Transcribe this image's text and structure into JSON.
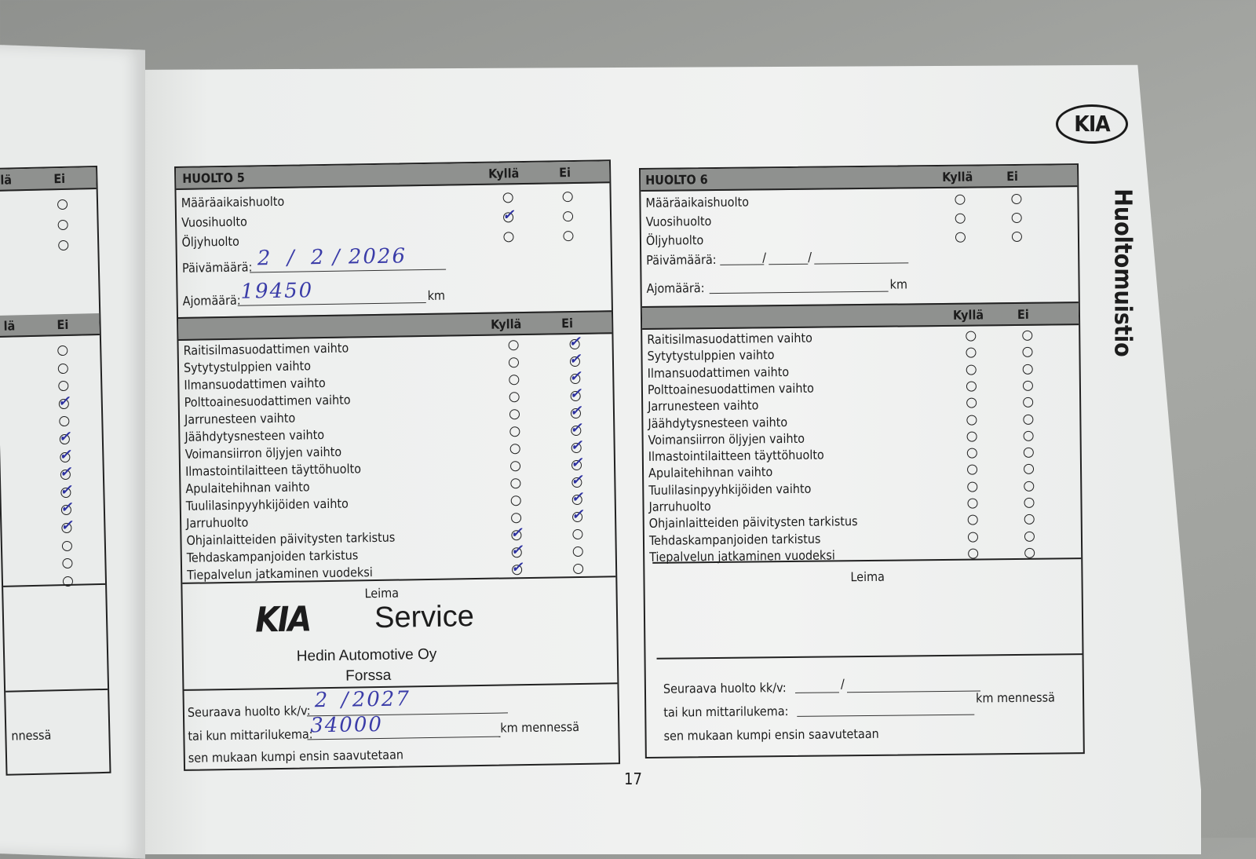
{
  "brand": {
    "logo_text": "KIA",
    "vertical_title": "Huoltomuistio",
    "page_number": "17",
    "ink_color": "#2b2fa0"
  },
  "columns": {
    "yes": "Kyllä",
    "no": "Ei"
  },
  "top_items": [
    "Määräaikaishuolto",
    "Vuosihuolto",
    "Öljyhuolto"
  ],
  "labels": {
    "date": "Päivämäärä:",
    "mileage": "Ajomäärä:",
    "km": "km",
    "stamp": "Leima",
    "next_service": "Seuraava huolto kk/v:",
    "or_odometer": "tai kun mittarilukema:",
    "km_by": "km mennessä",
    "whichever": "sen mukaan kumpi ensin saavutetaan"
  },
  "task_items": [
    "Raitisilmasuodattimen vaihto",
    "Sytytystulppien vaihto",
    "Ilmansuodattimen vaihto",
    "Polttoainesuodattimen vaihto",
    "Jarrunesteen vaihto",
    "Jäähdytysnesteen vaihto",
    "Voimansiirron öljyjen vaihto",
    "Ilmastointilaitteen täyttöhuolto",
    "Apulaitehihnan vaihto",
    "Tuulilasinpyyhkijöiden vaihto",
    "Jarruhuolto",
    "Ohjainlaitteiden päivitysten tarkistus",
    "Tehdaskampanjoiden tarkistus",
    "Tiepalvelun jatkaminen vuodeksi"
  ],
  "huolto5": {
    "title": "HUOLTO 5",
    "top_checks": [
      "",
      "yes",
      ""
    ],
    "date": {
      "day": "2",
      "month": "2",
      "year": "2026"
    },
    "mileage": "19450",
    "task_checks": [
      "no",
      "no",
      "no",
      "no",
      "no",
      "no",
      "no",
      "no",
      "no",
      "no",
      "no",
      "yes",
      "yes",
      "yes"
    ],
    "stamp": {
      "logo": "KIA",
      "service": "Service",
      "company": "Hedin Automotive Oy",
      "city": "Forssa"
    },
    "next_service": {
      "month": "2",
      "year": "2027",
      "odometer": "34000"
    }
  },
  "huolto6": {
    "title": "HUOLTO 6",
    "top_checks": [
      "",
      "",
      ""
    ],
    "task_checks": [
      "",
      "",
      "",
      "",
      "",
      "",
      "",
      "",
      "",
      "",
      "",
      "",
      "",
      ""
    ]
  },
  "left_page": {
    "col_yes_partial": "lä",
    "col_no": "Ei",
    "top_checks": [
      "",
      "",
      ""
    ],
    "task_checks": [
      "",
      "",
      "",
      "no",
      "",
      "no",
      "no",
      "no",
      "no",
      "no",
      "no",
      "",
      "",
      ""
    ],
    "footer_partial": "nnessä"
  }
}
